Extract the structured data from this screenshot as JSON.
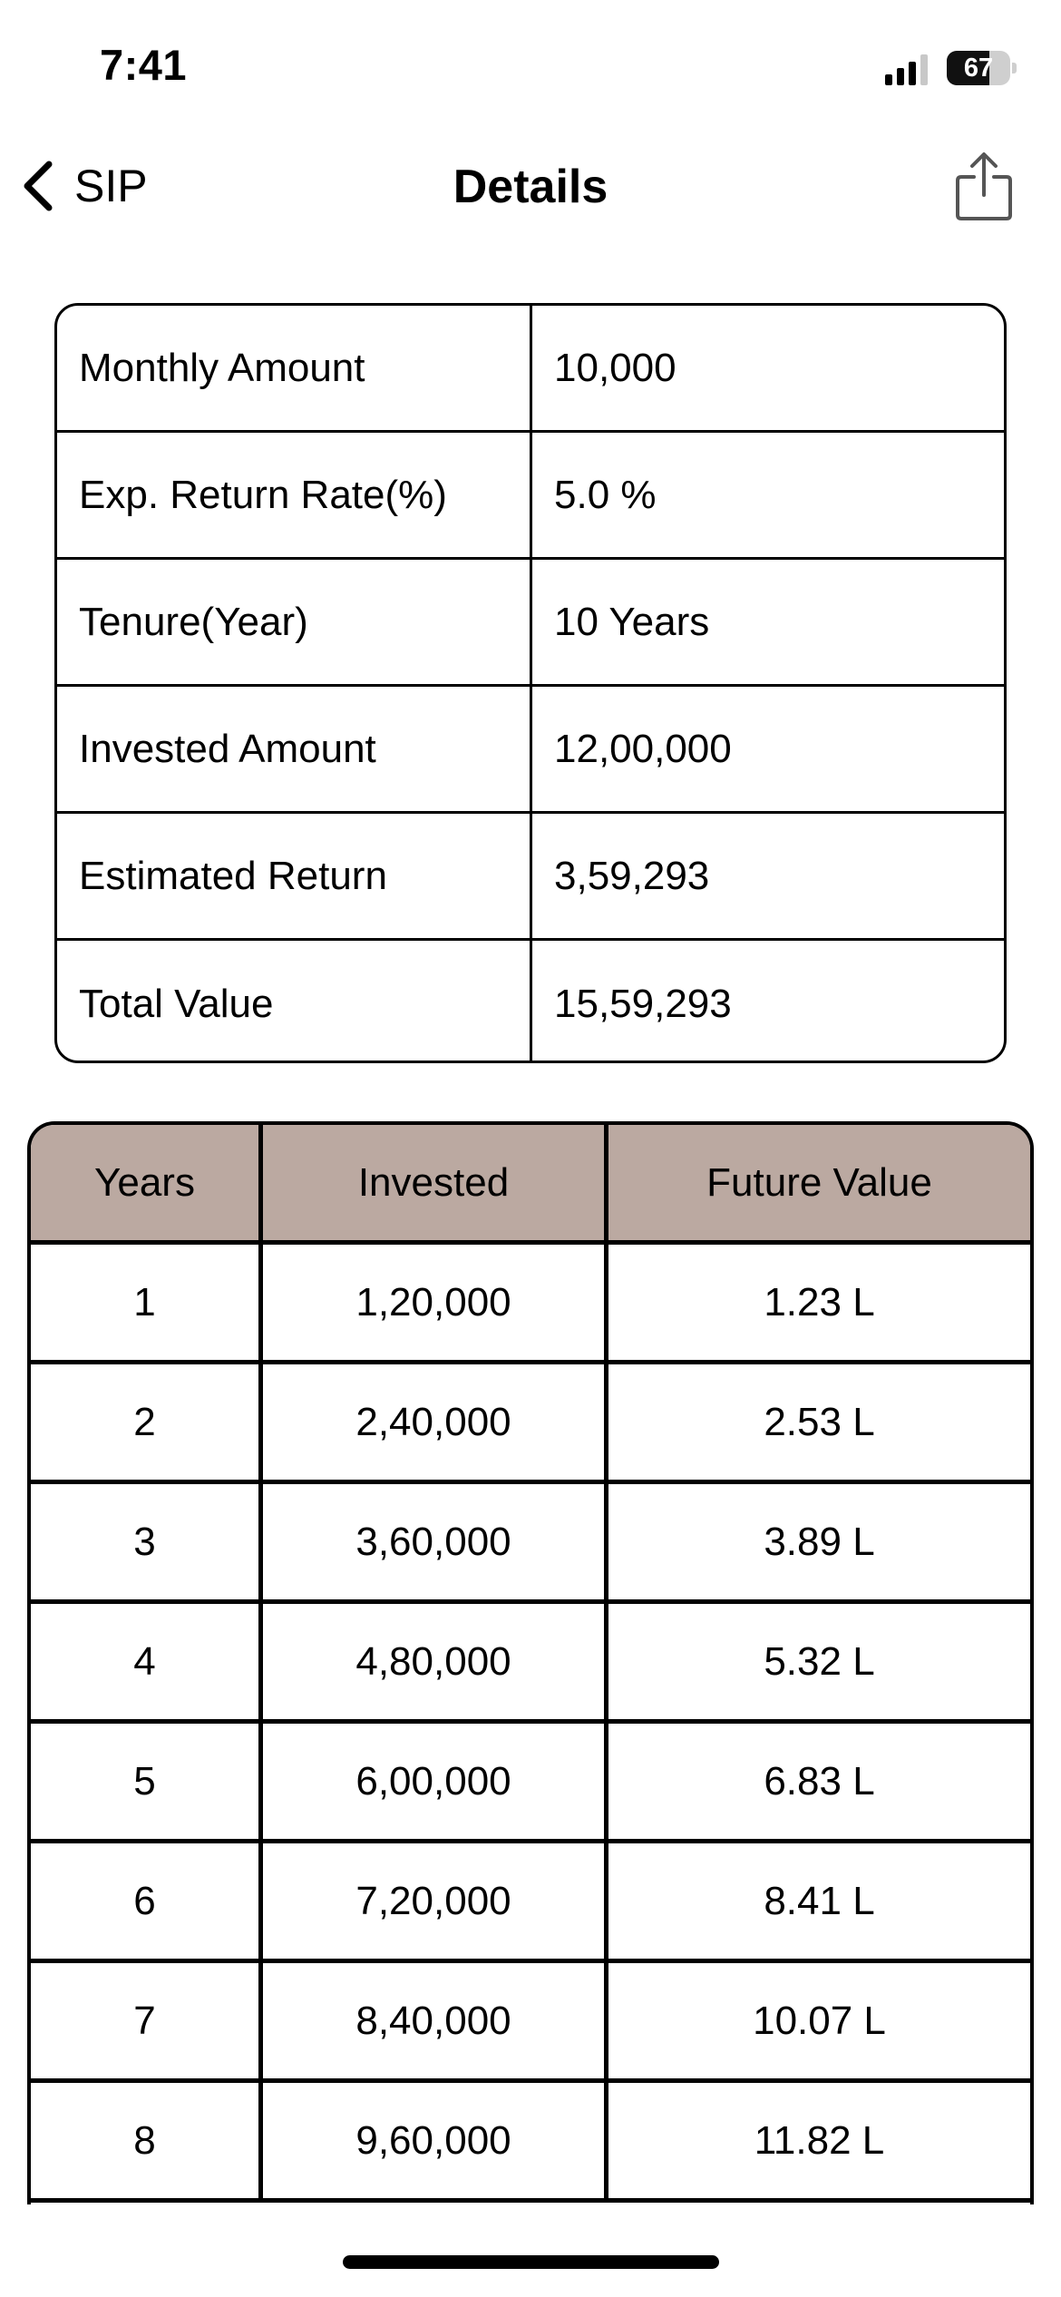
{
  "status_bar": {
    "time": "7:41",
    "battery_level": "67",
    "battery_fraction": 0.67,
    "signal_icon": "cellular-signal-icon"
  },
  "nav": {
    "back_label": "SIP",
    "title": "Details",
    "back_icon": "chevron-left-icon",
    "share_icon": "share-icon"
  },
  "summary": {
    "rows": [
      {
        "label": "Monthly Amount",
        "value": "10,000"
      },
      {
        "label": "Exp. Return Rate(%)",
        "value": "5.0 %"
      },
      {
        "label": "Tenure(Year)",
        "value": "10 Years"
      },
      {
        "label": "Invested Amount",
        "value": "12,00,000"
      },
      {
        "label": "Estimated Return",
        "value": "3,59,293"
      },
      {
        "label": "Total Value",
        "value": "15,59,293"
      }
    ]
  },
  "yearly_table": {
    "header_color": "#bba9a1",
    "headers": [
      "Years",
      "Invested",
      "Future Value"
    ],
    "rows": [
      [
        "1",
        "1,20,000",
        "1.23 L"
      ],
      [
        "2",
        "2,40,000",
        "2.53 L"
      ],
      [
        "3",
        "3,60,000",
        "3.89 L"
      ],
      [
        "4",
        "4,80,000",
        "5.32 L"
      ],
      [
        "5",
        "6,00,000",
        "6.83 L"
      ],
      [
        "6",
        "7,20,000",
        "8.41 L"
      ],
      [
        "7",
        "8,40,000",
        "10.07 L"
      ],
      [
        "8",
        "9,60,000",
        "11.82 L"
      ]
    ]
  }
}
